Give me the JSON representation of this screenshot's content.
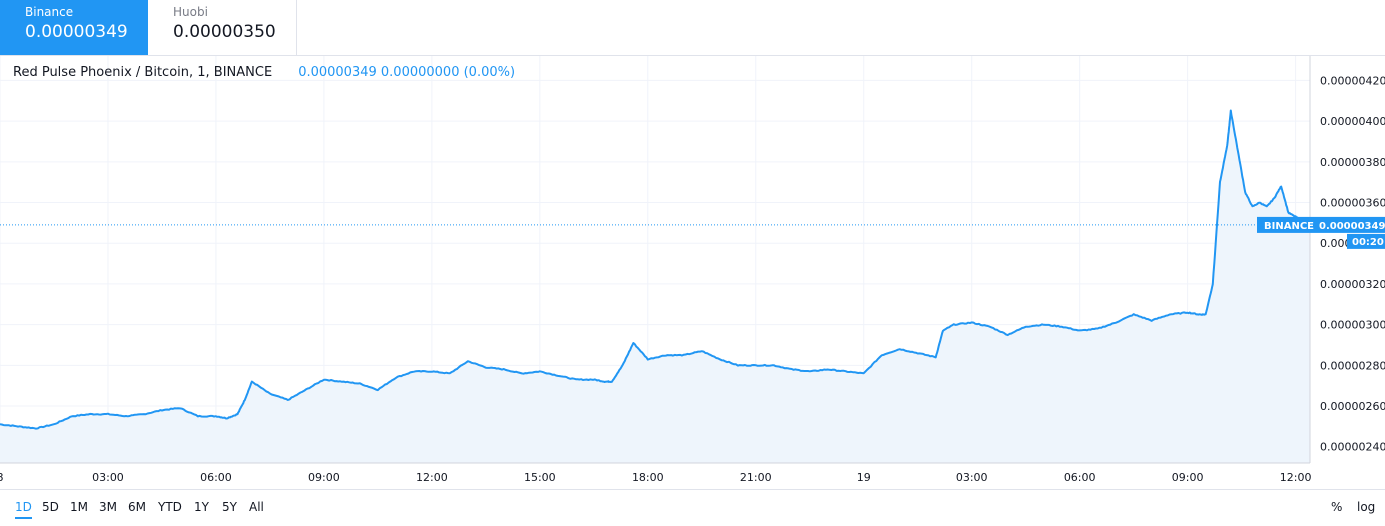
{
  "tabs": [
    {
      "name": "Binance",
      "price": "0.00000349",
      "active": true
    },
    {
      "name": "Huobi",
      "price": "0.00000350",
      "active": false
    }
  ],
  "legend": {
    "symbol": "Red Pulse Phoenix / Bitcoin, 1, BINANCE",
    "values": "0.00000349  0.00000000 (0.00%)"
  },
  "price_badge": {
    "exchange": "BINANCE",
    "price": "0.00000349",
    "countdown": "00:20"
  },
  "ranges": [
    "1D",
    "5D",
    "1M",
    "3M",
    "6M",
    "YTD",
    "1Y",
    "5Y",
    "All"
  ],
  "active_range": "1D",
  "right_buttons": {
    "percent": "%",
    "log": "log"
  },
  "colors": {
    "line": "#2196f3",
    "fill": "#eef5fc",
    "grid": "#f0f3fa",
    "accent": "#2196f3"
  },
  "chart_data": {
    "type": "area",
    "title": "Red Pulse Phoenix / Bitcoin, 1, BINANCE",
    "y_ticks": [
      "0.00000240",
      "0.00000260",
      "0.00000280",
      "0.00000300",
      "0.00000320",
      "0.00000340",
      "0.00000360",
      "0.00000380",
      "0.00000400",
      "0.00000420"
    ],
    "ylim": [
      2.32e-06,
      4.32e-06
    ],
    "x_ticks": [
      "8",
      "03:00",
      "06:00",
      "09:00",
      "12:00",
      "15:00",
      "18:00",
      "21:00",
      "19",
      "03:00",
      "06:00",
      "09:00",
      "12:00"
    ],
    "x_tick_hours": [
      0,
      3,
      6,
      9,
      12,
      15,
      18,
      21,
      24,
      27,
      30,
      33,
      36
    ],
    "xlim_hours": [
      0,
      36.4
    ],
    "last_price": 3.49e-06,
    "series": [
      {
        "x_hours": [
          0,
          0.5,
          1.0,
          1.5,
          2.0,
          2.5,
          3.0,
          3.5,
          4.0,
          4.5,
          5.0,
          5.5,
          6.0,
          6.3,
          6.6,
          6.8,
          7.0,
          7.5,
          8.0,
          8.5,
          9.0,
          9.5,
          10.0,
          10.5,
          11.0,
          11.5,
          12.0,
          12.5,
          13.0,
          13.5,
          14.0,
          14.5,
          15.0,
          15.5,
          16.0,
          16.5,
          16.8,
          17.0,
          17.3,
          17.6,
          18.0,
          18.5,
          19.0,
          19.5,
          20.0,
          20.5,
          21.0,
          21.5,
          22.0,
          22.5,
          23.0,
          23.5,
          24.0,
          24.5,
          25.0,
          25.5,
          26.0,
          26.2,
          26.5,
          27.0,
          27.5,
          28.0,
          28.5,
          29.0,
          29.5,
          30.0,
          30.5,
          31.0,
          31.5,
          32.0,
          32.5,
          33.0,
          33.3,
          33.5,
          33.7,
          33.9,
          34.1,
          34.2,
          34.4,
          34.6,
          34.8,
          35.0,
          35.2,
          35.4,
          35.6,
          35.8,
          36.0,
          36.2,
          36.4
        ],
        "y": [
          2.51e-06,
          2.5e-06,
          2.49e-06,
          2.51e-06,
          2.55e-06,
          2.56e-06,
          2.56e-06,
          2.55e-06,
          2.56e-06,
          2.58e-06,
          2.59e-06,
          2.55e-06,
          2.55e-06,
          2.54e-06,
          2.56e-06,
          2.63e-06,
          2.72e-06,
          2.66e-06,
          2.63e-06,
          2.68e-06,
          2.73e-06,
          2.72e-06,
          2.71e-06,
          2.68e-06,
          2.74e-06,
          2.77e-06,
          2.77e-06,
          2.76e-06,
          2.82e-06,
          2.79e-06,
          2.78e-06,
          2.76e-06,
          2.77e-06,
          2.75e-06,
          2.73e-06,
          2.73e-06,
          2.72e-06,
          2.72e-06,
          2.8e-06,
          2.91e-06,
          2.83e-06,
          2.85e-06,
          2.85e-06,
          2.87e-06,
          2.83e-06,
          2.8e-06,
          2.8e-06,
          2.8e-06,
          2.78e-06,
          2.77e-06,
          2.78e-06,
          2.77e-06,
          2.76e-06,
          2.85e-06,
          2.88e-06,
          2.86e-06,
          2.84e-06,
          2.97e-06,
          3e-06,
          3.01e-06,
          2.99e-06,
          2.95e-06,
          2.99e-06,
          3e-06,
          2.99e-06,
          2.97e-06,
          2.98e-06,
          3.01e-06,
          3.05e-06,
          3.02e-06,
          3.05e-06,
          3.06e-06,
          3.05e-06,
          3.05e-06,
          3.2e-06,
          3.7e-06,
          3.88e-06,
          4.05e-06,
          3.85e-06,
          3.65e-06,
          3.58e-06,
          3.6e-06,
          3.58e-06,
          3.62e-06,
          3.68e-06,
          3.55e-06,
          3.53e-06,
          3.51e-06,
          3.49e-06
        ]
      }
    ]
  }
}
